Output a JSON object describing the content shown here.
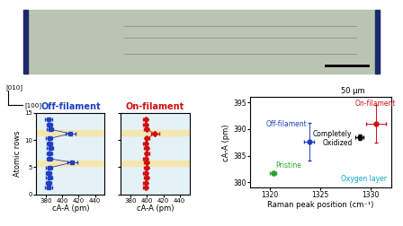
{
  "chart_data": [
    {
      "type": "image",
      "scale_bar": "50 μm",
      "direction_labels": [
        "[010]",
        "[100]"
      ]
    },
    {
      "type": "scatter",
      "title": "Off-filament",
      "color": "#1f3fbf",
      "marker": "s",
      "xlabel": "cA-A (pm)",
      "ylabel": "Atomic rows",
      "x": [
        383,
        383,
        384,
        383,
        384,
        412,
        384,
        384,
        385,
        384,
        384,
        410,
        385,
        384,
        383
      ],
      "y": [
        1.2,
        2.1,
        3.1,
        4.0,
        4.9,
        5.9,
        6.6,
        7.5,
        8.5,
        9.3,
        10.3,
        11.2,
        12.0,
        12.9,
        13.9
      ],
      "x_error": [
        4,
        3,
        4,
        3,
        4,
        6,
        3,
        3,
        4,
        3,
        4,
        6,
        4,
        3,
        4
      ],
      "highlight_rows": [
        5.7,
        11.4
      ],
      "xlim": [
        368,
        452
      ],
      "xticks": [
        380,
        400,
        420,
        440
      ],
      "ylim": [
        0,
        15
      ],
      "yticks": [
        0,
        5,
        10,
        15
      ]
    },
    {
      "type": "scatter",
      "title": "On-filament",
      "color": "#d01010",
      "marker": "D",
      "xlabel": "cA-A (pm)",
      "tick_labels": "x",
      "x": [
        398,
        398,
        399,
        398,
        399,
        399,
        398,
        400,
        399,
        398,
        400,
        410,
        399,
        398,
        398
      ],
      "y": [
        1.2,
        2.1,
        3.1,
        4.0,
        4.9,
        5.9,
        6.6,
        7.5,
        8.5,
        9.3,
        10.3,
        11.2,
        12.0,
        12.9,
        13.9
      ],
      "x_error": [
        3,
        3,
        3,
        3,
        3,
        3,
        3,
        3,
        3,
        3,
        3,
        5,
        3,
        3,
        3
      ],
      "highlight_rows": [
        5.7,
        11.4
      ],
      "xlim": [
        368,
        452
      ],
      "xticks": [
        380,
        400,
        420,
        440
      ],
      "ylim": [
        0,
        15
      ],
      "yticks": [
        0,
        5,
        10,
        15
      ]
    },
    {
      "type": "scatter",
      "xlabel": "Raman peak position (cm⁻¹)",
      "ylabel": "cA-A (pm)",
      "points": [
        {
          "name": "Pristine",
          "x": 1320.3,
          "y": 381.7,
          "x_error": 0.3,
          "y_error": 0.3,
          "color": "#2ca02c"
        },
        {
          "name": "Off-filament",
          "x": 1323.9,
          "y": 387.6,
          "x_error": 0.5,
          "y_error": 3.5,
          "color": "#1f3fbf"
        },
        {
          "name": "Completely\nOxidized",
          "x": 1328.9,
          "y": 388.5,
          "x_error": 0.4,
          "y_error": 0.5,
          "color": "#000000"
        },
        {
          "name": "On-filament",
          "x": 1330.5,
          "y": 391.0,
          "x_error": 1.0,
          "y_error": 3.5,
          "color": "#d01010"
        }
      ],
      "annotations": [
        {
          "text": "Oxygen layer",
          "color": "#00a8c8"
        }
      ],
      "xlim": [
        1318,
        1332
      ],
      "xticks": [
        1320,
        1325,
        1330
      ],
      "ylim": [
        379,
        396
      ],
      "yticks": [
        380,
        385,
        390,
        395
      ]
    }
  ]
}
